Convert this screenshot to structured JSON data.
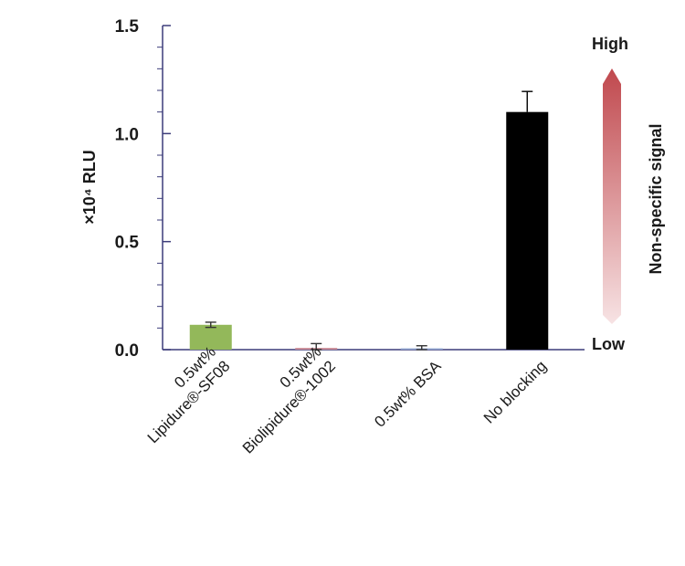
{
  "chart_data": {
    "type": "bar",
    "ylabel": "×10⁴ RLU",
    "ylim": [
      0,
      1.5
    ],
    "yticks": [
      "0.0",
      "0.5",
      "1.0",
      "1.5"
    ],
    "categories": [
      [
        "0.5wt%",
        "Lipidure®-SF08"
      ],
      [
        "0.5wt%",
        "Biolipidure®-1002"
      ],
      [
        "0.5wt% BSA"
      ],
      [
        "No blocking"
      ]
    ],
    "values": [
      0.115,
      0.008,
      0.006,
      1.1
    ],
    "errors": [
      0.012,
      0.02,
      0.012,
      0.095
    ],
    "colors": [
      "#93b85a",
      "#c98a95",
      "#8ea3cf",
      "#000000"
    ],
    "grid": false,
    "legend": "none"
  },
  "annotation": {
    "high": "High",
    "low": "Low",
    "label": "Non-specific signal",
    "gradient_top": "#c0484d",
    "gradient_bottom": "#f7e3e4"
  }
}
